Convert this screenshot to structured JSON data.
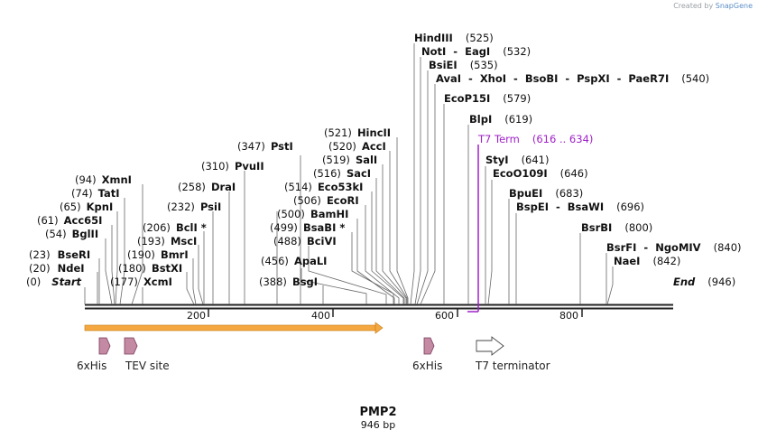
{
  "watermark": {
    "prefix": "Created by",
    "brand": "SnapGene"
  },
  "plasmid": {
    "name": "PMP2",
    "length_label": "946 bp"
  },
  "axis": {
    "ticks": [
      "200",
      "400",
      "600",
      "800"
    ]
  },
  "sites": [
    {
      "name": "Start",
      "pos": "(0)",
      "italic": true
    },
    {
      "name": "NdeI",
      "pos": "(20)"
    },
    {
      "name": "BseRI",
      "pos": "(23)"
    },
    {
      "name": "BglII",
      "pos": "(54)"
    },
    {
      "name": "Acc65I",
      "pos": "(61)"
    },
    {
      "name": "KpnI",
      "pos": "(65)"
    },
    {
      "name": "TatI",
      "pos": "(74)"
    },
    {
      "name": "XmnI",
      "pos": "(94)"
    },
    {
      "name": "XcmI",
      "pos": "(177)"
    },
    {
      "name": "BstXI",
      "pos": "(180)"
    },
    {
      "name": "BmrI",
      "pos": "(190)"
    },
    {
      "name": "MscI",
      "pos": "(193)"
    },
    {
      "name": "BclI *",
      "pos": "(206)"
    },
    {
      "name": "PsiI",
      "pos": "(232)"
    },
    {
      "name": "DraI",
      "pos": "(258)"
    },
    {
      "name": "PvuII",
      "pos": "(310)"
    },
    {
      "name": "PstI",
      "pos": "(347)"
    },
    {
      "name": "BsgI",
      "pos": "(388)"
    },
    {
      "name": "ApaLI",
      "pos": "(456)"
    },
    {
      "name": "BciVI",
      "pos": "(488)"
    },
    {
      "name": "BsaBI *",
      "pos": "(499)"
    },
    {
      "name": "BamHI",
      "pos": "(500)"
    },
    {
      "name": "EcoRI",
      "pos": "(506)"
    },
    {
      "name": "Eco53kI",
      "pos": "(514)"
    },
    {
      "name": "SacI",
      "pos": "(516)"
    },
    {
      "name": "SalI",
      "pos": "(519)"
    },
    {
      "name": "AccI",
      "pos": "(520)"
    },
    {
      "name": "HincII",
      "pos": "(521)"
    },
    {
      "name": "HindIII",
      "pos": "(525)"
    },
    {
      "name": "NotI  -  EagI",
      "pos": "(532)"
    },
    {
      "name": "BsiEI",
      "pos": "(535)"
    },
    {
      "name": "AvaI  -  XhoI  -  BsoBI  -  PspXI  -  PaeR7I",
      "pos": "(540)"
    },
    {
      "name": "EcoP15I",
      "pos": "(579)"
    },
    {
      "name": "BlpI",
      "pos": "(619)"
    },
    {
      "name": "T7 Term",
      "pos": "(616 .. 634)",
      "purple": true
    },
    {
      "name": "StyI",
      "pos": "(641)"
    },
    {
      "name": "EcoO109I",
      "pos": "(646)"
    },
    {
      "name": "BpuEI",
      "pos": "(683)"
    },
    {
      "name": "BspEI  -  BsaWI",
      "pos": "(696)"
    },
    {
      "name": "BsrBI",
      "pos": "(800)"
    },
    {
      "name": "BsrFI  -  NgoMIV",
      "pos": "(840)"
    },
    {
      "name": "NaeI",
      "pos": "(842)"
    },
    {
      "name": "End",
      "pos": "(946)",
      "italic": true
    }
  ],
  "features": [
    {
      "label": "6xHis",
      "type": "arrow"
    },
    {
      "label": "TEV site",
      "type": "arrow"
    },
    {
      "label": "6xHis",
      "type": "arrow"
    },
    {
      "label": "T7 terminator",
      "type": "terminator"
    }
  ],
  "colors": {
    "orf": "#f5a840",
    "feature": "#c48aa4",
    "term": "#a020c8",
    "backbone": "#222222"
  }
}
